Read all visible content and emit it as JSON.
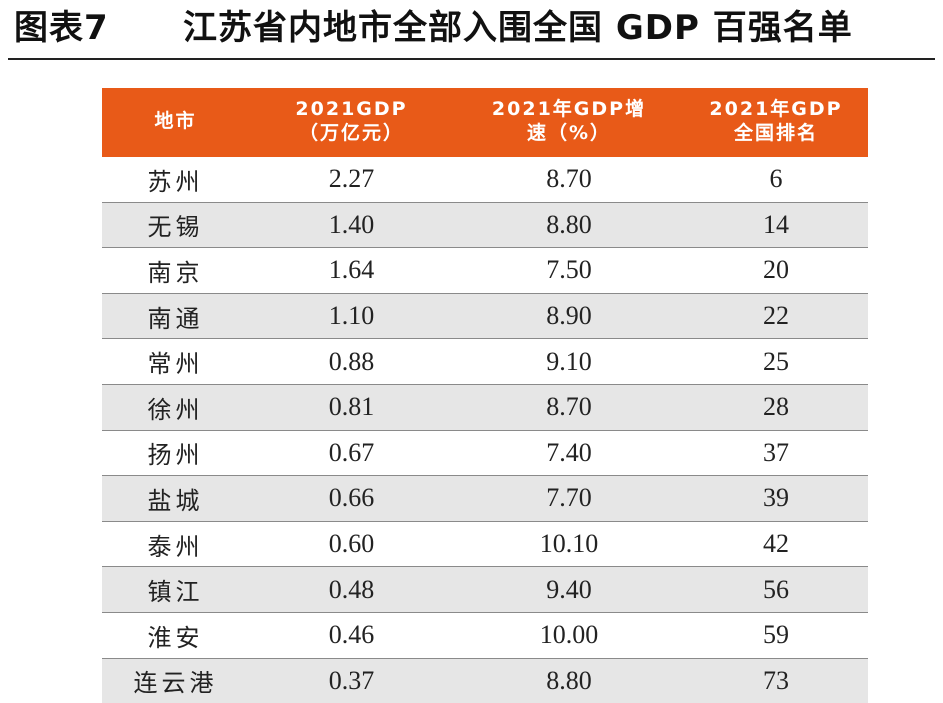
{
  "figure": {
    "label": "图表7",
    "title": "江苏省内地市全部入围全国 GDP 百强名单"
  },
  "table": {
    "headers": [
      "地市",
      "2021GDP（万亿元）",
      "2021年GDP增速（%）",
      "2021年GDP全国排名"
    ],
    "header_lines": [
      [
        "地市"
      ],
      [
        "2021GDP",
        "（万亿元）"
      ],
      [
        "2021年GDP增",
        "速（%）"
      ],
      [
        "2021年GDP",
        "全国排名"
      ]
    ],
    "rows": [
      {
        "city": "苏州",
        "gdp": "2.27",
        "growth": "8.70",
        "rank": "6"
      },
      {
        "city": "无锡",
        "gdp": "1.40",
        "growth": "8.80",
        "rank": "14"
      },
      {
        "city": "南京",
        "gdp": "1.64",
        "growth": "7.50",
        "rank": "20"
      },
      {
        "city": "南通",
        "gdp": "1.10",
        "growth": "8.90",
        "rank": "22"
      },
      {
        "city": "常州",
        "gdp": "0.88",
        "growth": "9.10",
        "rank": "25"
      },
      {
        "city": "徐州",
        "gdp": "0.81",
        "growth": "8.70",
        "rank": "28"
      },
      {
        "city": "扬州",
        "gdp": "0.67",
        "growth": "7.40",
        "rank": "37"
      },
      {
        "city": "盐城",
        "gdp": "0.66",
        "growth": "7.70",
        "rank": "39"
      },
      {
        "city": "泰州",
        "gdp": "0.60",
        "growth": "10.10",
        "rank": "42"
      },
      {
        "city": "镇江",
        "gdp": "0.48",
        "growth": "9.40",
        "rank": "56"
      },
      {
        "city": "淮安",
        "gdp": "0.46",
        "growth": "10.00",
        "rank": "59"
      },
      {
        "city": "连云港",
        "gdp": "0.37",
        "growth": "8.80",
        "rank": "73"
      }
    ]
  },
  "colors": {
    "header_background": "#e85a18",
    "header_text": "#ffffff",
    "stripe_background": "#e6e6e6",
    "body_text": "#222222"
  }
}
